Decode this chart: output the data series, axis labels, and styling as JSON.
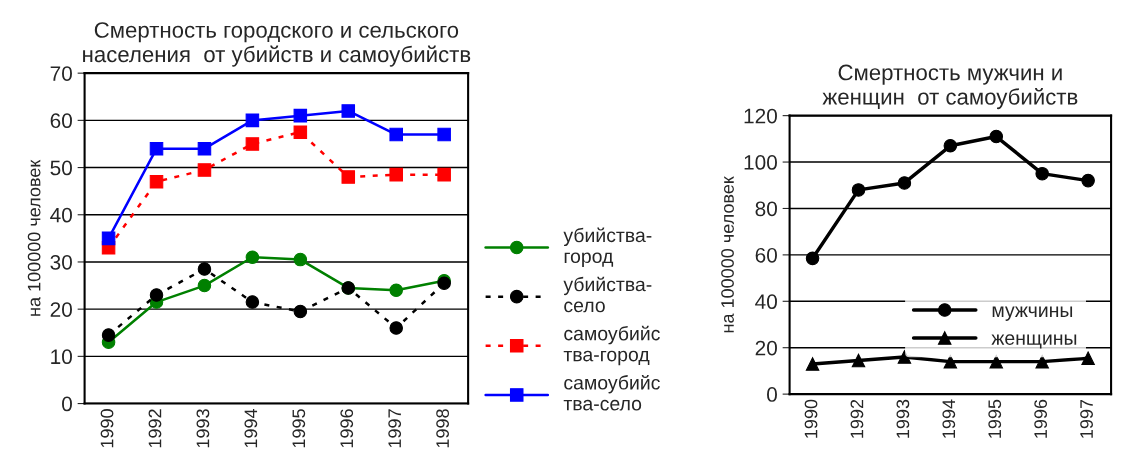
{
  "chart_data": [
    {
      "type": "line",
      "title": "Смертность городского и сельского\nнаселения  от убийств и самоубийств",
      "ylabel": "на 100000 человек",
      "categories": [
        "1990",
        "1992",
        "1993",
        "1994",
        "1995",
        "1996",
        "1997",
        "1998"
      ],
      "ylim": [
        0,
        70
      ],
      "yticks": [
        0,
        10,
        20,
        30,
        40,
        50,
        60,
        70
      ],
      "grid": "y",
      "legend": "right",
      "series": [
        {
          "name": "убийства-\nгород",
          "color": "#008000",
          "marker": "circle",
          "line_style": "solid",
          "values": [
            13,
            21.5,
            25,
            31,
            30.5,
            24.5,
            24,
            26
          ]
        },
        {
          "name": "убийства-\nсело",
          "color": "#000000",
          "marker": "circle",
          "line_style": "dotted",
          "values": [
            14.5,
            23,
            28.5,
            21.5,
            19.5,
            24.5,
            16,
            25.5
          ]
        },
        {
          "name": "самоубийс\nтва-город",
          "color": "#ff0000",
          "marker": "square",
          "line_style": "dotted",
          "values": [
            33,
            47,
            49.5,
            55,
            57.5,
            48,
            48.5,
            48.5
          ]
        },
        {
          "name": "самоубийс\nтва-село",
          "color": "#0000ff",
          "marker": "square",
          "line_style": "solid",
          "values": [
            35,
            54,
            54,
            60,
            61,
            62,
            57,
            57
          ]
        }
      ]
    },
    {
      "type": "line",
      "title": "Смертность мужчин и\nженщин  от самоубийств",
      "ylabel": "на 100000 человек",
      "categories": [
        "1990",
        "1992",
        "1993",
        "1994",
        "1995",
        "1996",
        "1997"
      ],
      "ylim": [
        0,
        120
      ],
      "yticks": [
        0,
        20,
        40,
        60,
        80,
        100,
        120
      ],
      "grid": "y",
      "legend": "bottom",
      "series": [
        {
          "name": "мужчины",
          "color": "#000000",
          "marker": "circle",
          "line_style": "solid",
          "values": [
            58.5,
            88,
            91,
            107,
            111,
            95,
            92
          ]
        },
        {
          "name": "женщины",
          "color": "#000000",
          "marker": "triangle",
          "line_style": "solid",
          "values": [
            13,
            14.5,
            16,
            14,
            14,
            14,
            15.5
          ]
        }
      ]
    }
  ]
}
